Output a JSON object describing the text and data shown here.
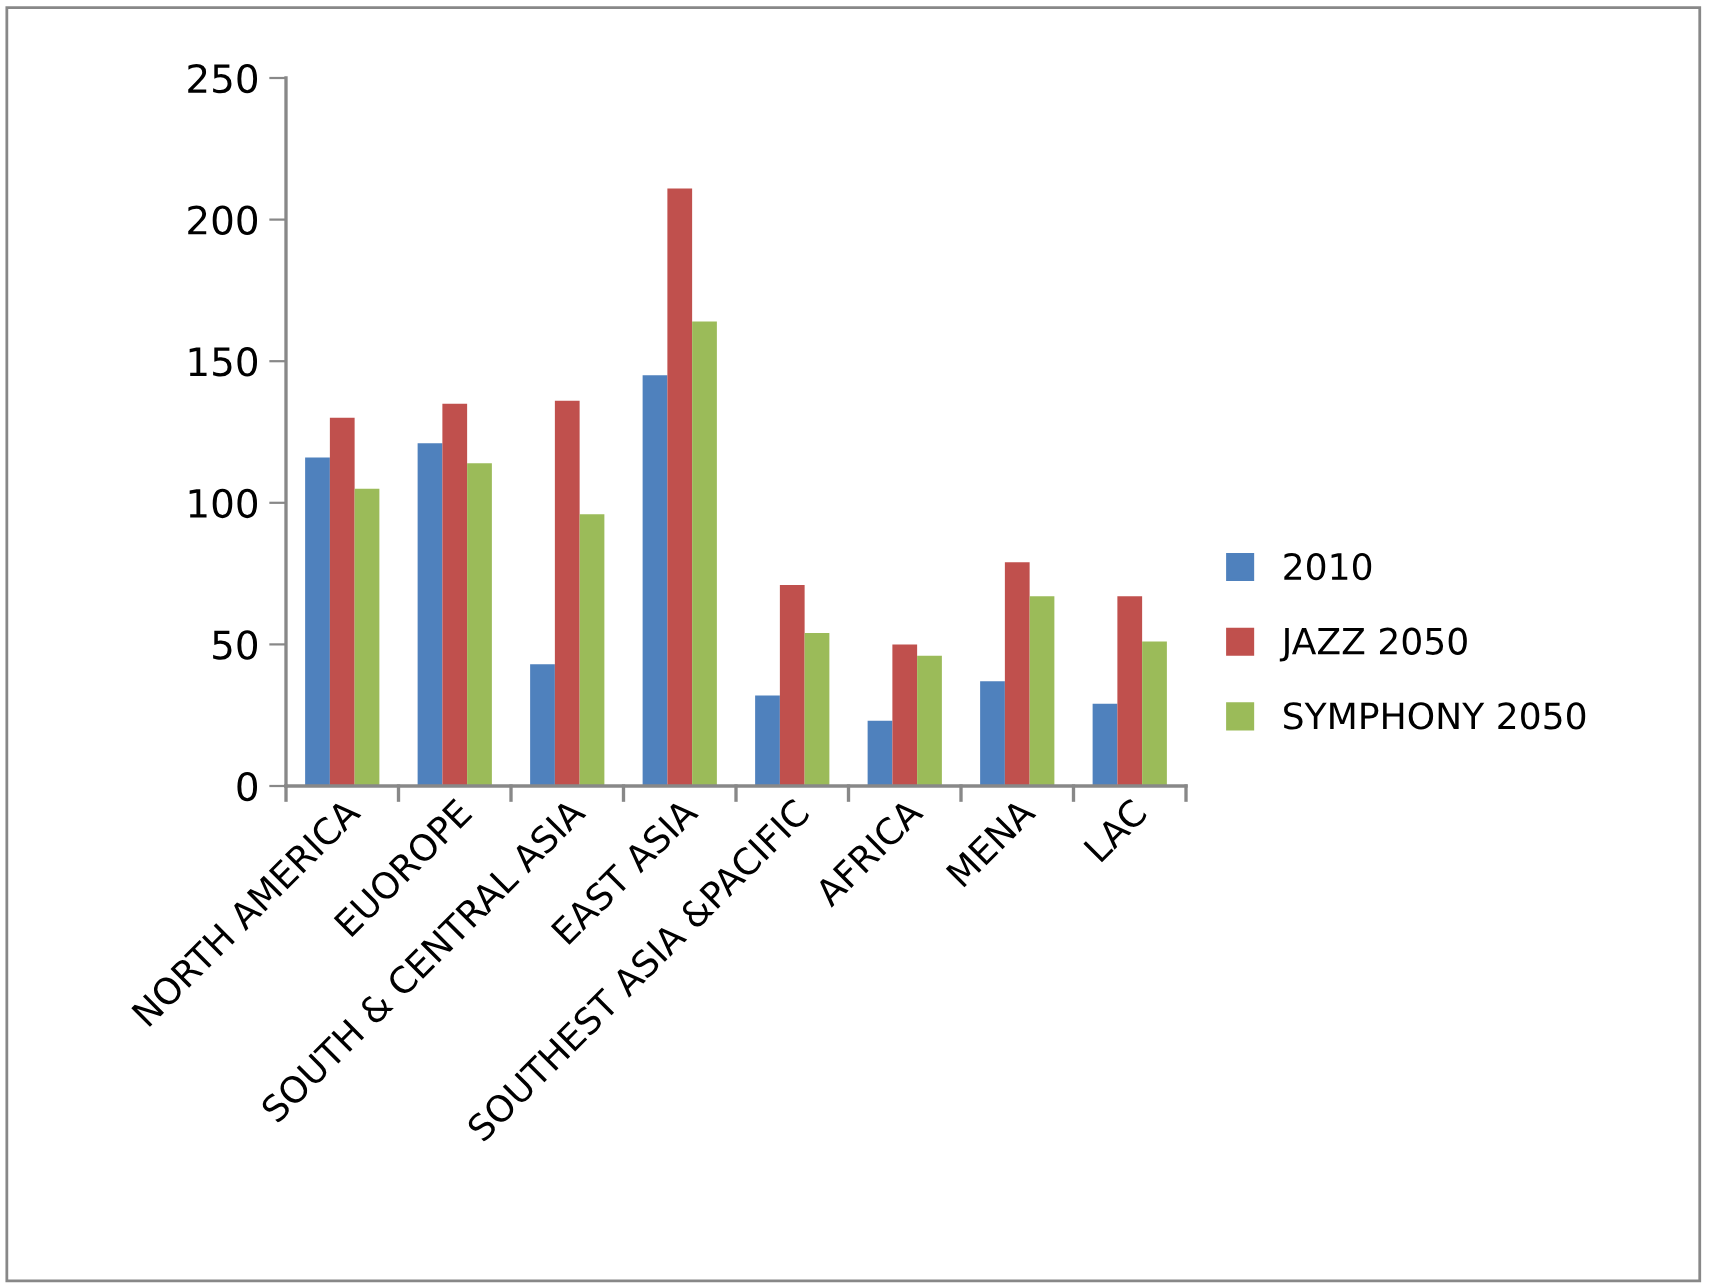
{
  "chart_data": {
    "type": "bar",
    "categories": [
      "NORTH AMERICA",
      "EUOROPE",
      "SOUTH & CENTRAL ASIA",
      "EAST ASIA",
      "SOUTHEST ASIA &PACIFIC",
      "AFRICA",
      "MENA",
      "LAC"
    ],
    "series": [
      {
        "name": "2010",
        "color": "#4f81bd",
        "values": [
          116,
          121,
          43,
          145,
          32,
          23,
          37,
          29
        ]
      },
      {
        "name": "JAZZ 2050",
        "color": "#c0504d",
        "values": [
          130,
          135,
          136,
          211,
          71,
          50,
          79,
          67
        ]
      },
      {
        "name": "SYMPHONY 2050",
        "color": "#9bbb59",
        "values": [
          105,
          114,
          96,
          164,
          54,
          46,
          67,
          51
        ]
      }
    ],
    "ylim": [
      0,
      250
    ],
    "yticks": [
      0,
      50,
      100,
      150,
      200,
      250
    ],
    "grid": false,
    "legend": "right"
  }
}
